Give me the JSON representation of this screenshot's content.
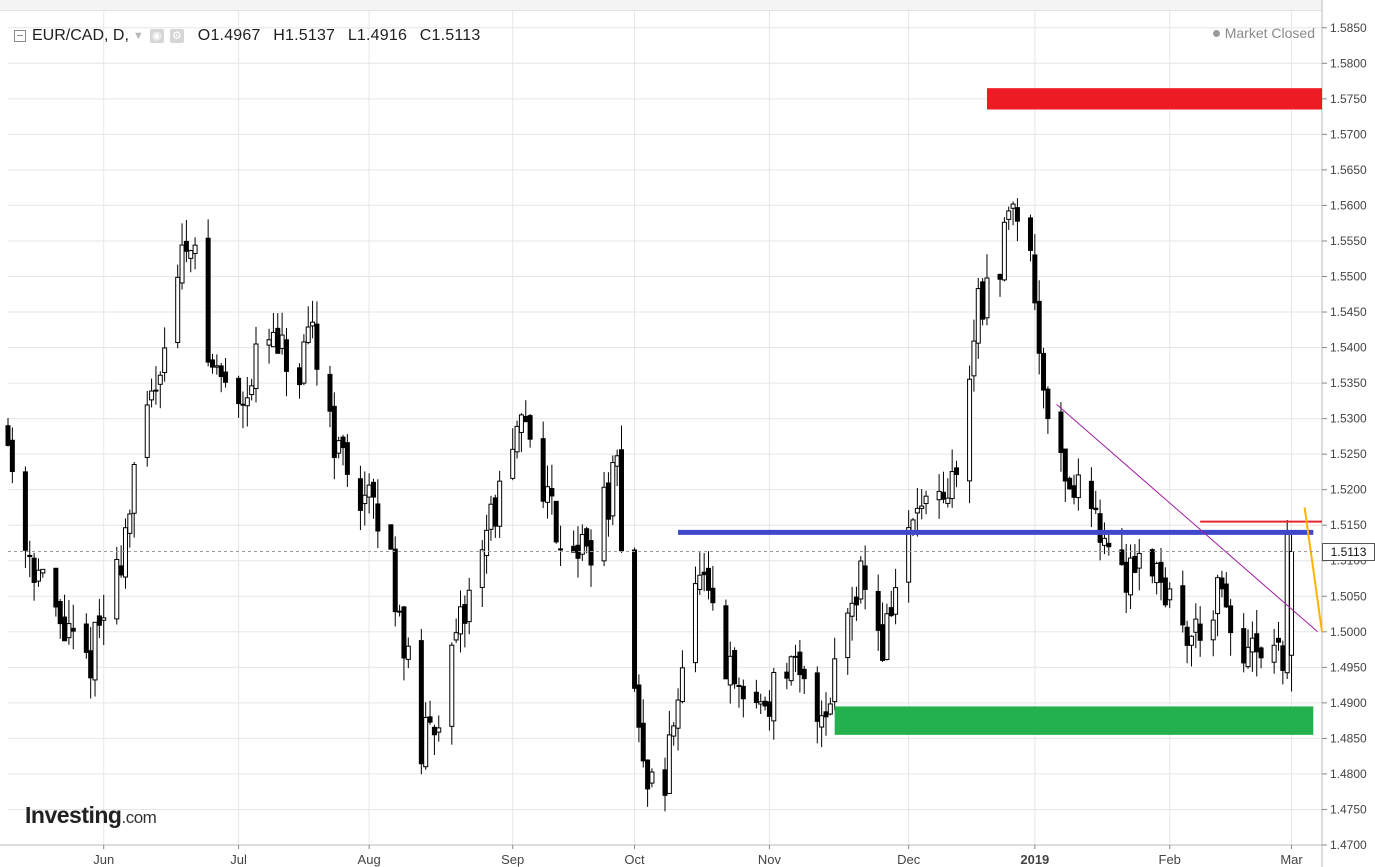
{
  "header": {
    "symbol": "EUR/CAD, D,",
    "open_key": "O",
    "open": "1.4967",
    "high_key": "H",
    "high": "1.5137",
    "low_key": "L",
    "low": "1.4916",
    "close_key": "C",
    "close": "1.5113",
    "status": "Market Closed"
  },
  "logo": {
    "main": "Investing",
    "suffix": ".com"
  },
  "last_price": "1.5113",
  "colors": {
    "background": "#ffffff",
    "grid": "#e6e6e6",
    "candle": "#000000",
    "resistance_zone": "#ed1c24",
    "support_zone": "#22b14c",
    "support_line": "#3f48cc",
    "trend_line": "#a020a0",
    "short_line": "#e8262d",
    "projection_arrow": "#ffb300"
  },
  "chart_data": {
    "type": "candlestick",
    "instrument": "EUR/CAD",
    "timeframe": "D",
    "x_range": [
      "2018-05-10",
      "2019-03-08"
    ],
    "ylim": [
      1.47,
      1.5875
    ],
    "y_ticks": [
      1.47,
      1.475,
      1.48,
      1.485,
      1.49,
      1.495,
      1.5,
      1.505,
      1.51,
      1.515,
      1.52,
      1.525,
      1.53,
      1.535,
      1.54,
      1.545,
      1.55,
      1.555,
      1.56,
      1.565,
      1.57,
      1.575,
      1.58,
      1.585
    ],
    "y_tick_labels": [
      "1.4700",
      "1.4750",
      "1.4800",
      "1.4850",
      "1.4900",
      "1.4950",
      "1.5000",
      "1.5050",
      "1.5100",
      "1.5150",
      "1.5200",
      "1.5250",
      "1.5300",
      "1.5350",
      "1.5400",
      "1.5450",
      "1.5500",
      "1.5550",
      "1.5600",
      "1.5650",
      "1.5700",
      "1.5750",
      "1.5800",
      "1.5850"
    ],
    "x_ticks": [
      {
        "label": "Jun",
        "date": "2018-06-01"
      },
      {
        "label": "Jul",
        "date": "2018-07-02"
      },
      {
        "label": "Aug",
        "date": "2018-08-01"
      },
      {
        "label": "Sep",
        "date": "2018-09-03"
      },
      {
        "label": "Oct",
        "date": "2018-10-01"
      },
      {
        "label": "Nov",
        "date": "2018-11-01"
      },
      {
        "label": "Dec",
        "date": "2018-12-03"
      },
      {
        "label": "2019",
        "date": "2019-01-01",
        "bold": true
      },
      {
        "label": "Feb",
        "date": "2019-02-01"
      },
      {
        "label": "Mar",
        "date": "2019-03-01"
      }
    ],
    "price_path": [
      [
        "2018-05-10",
        1.53
      ],
      [
        "2018-05-15",
        1.513
      ],
      [
        "2018-05-22",
        1.502
      ],
      [
        "2018-05-29",
        1.495
      ],
      [
        "2018-06-05",
        1.508
      ],
      [
        "2018-06-12",
        1.53
      ],
      [
        "2018-06-19",
        1.55
      ],
      [
        "2018-06-22",
        1.557
      ],
      [
        "2018-06-26",
        1.538
      ],
      [
        "2018-07-03",
        1.533
      ],
      [
        "2018-07-10",
        1.541
      ],
      [
        "2018-07-17",
        1.535
      ],
      [
        "2018-07-20",
        1.542
      ],
      [
        "2018-07-26",
        1.525
      ],
      [
        "2018-08-01",
        1.519
      ],
      [
        "2018-08-06",
        1.513
      ],
      [
        "2018-08-09",
        1.503
      ],
      [
        "2018-08-14",
        1.483
      ],
      [
        "2018-08-21",
        1.495
      ],
      [
        "2018-08-28",
        1.513
      ],
      [
        "2018-09-03",
        1.522
      ],
      [
        "2018-09-07",
        1.53
      ],
      [
        "2018-09-14",
        1.515
      ],
      [
        "2018-09-21",
        1.511
      ],
      [
        "2018-09-28",
        1.522
      ],
      [
        "2018-10-01",
        1.499
      ],
      [
        "2018-10-04",
        1.48
      ],
      [
        "2018-10-09",
        1.478
      ],
      [
        "2018-10-12",
        1.493
      ],
      [
        "2018-10-17",
        1.508
      ],
      [
        "2018-10-22",
        1.496
      ],
      [
        "2018-10-26",
        1.491
      ],
      [
        "2018-11-01",
        1.49
      ],
      [
        "2018-11-06",
        1.495
      ],
      [
        "2018-11-12",
        1.49
      ],
      [
        "2018-11-15",
        1.489
      ],
      [
        "2018-11-19",
        1.502
      ],
      [
        "2018-11-23",
        1.509
      ],
      [
        "2018-11-28",
        1.498
      ],
      [
        "2018-12-03",
        1.512
      ],
      [
        "2018-12-07",
        1.518
      ],
      [
        "2018-12-12",
        1.516
      ],
      [
        "2018-12-17",
        1.528
      ],
      [
        "2018-12-20",
        1.548
      ],
      [
        "2018-12-24",
        1.545
      ],
      [
        "2018-12-27",
        1.561
      ],
      [
        "2018-12-31",
        1.56
      ],
      [
        "2019-01-03",
        1.54
      ],
      [
        "2019-01-07",
        1.525
      ],
      [
        "2019-01-11",
        1.52
      ],
      [
        "2019-01-16",
        1.518
      ],
      [
        "2019-01-21",
        1.506
      ],
      [
        "2019-01-25",
        1.511
      ],
      [
        "2019-01-30",
        1.51
      ],
      [
        "2019-02-04",
        1.5
      ],
      [
        "2019-02-08",
        1.5
      ],
      [
        "2019-02-13",
        1.505
      ],
      [
        "2019-02-18",
        1.497
      ],
      [
        "2019-02-22",
        1.496
      ],
      [
        "2019-02-26",
        1.495
      ],
      [
        "2019-02-28",
        1.497
      ],
      [
        "2019-03-01",
        1.5113
      ]
    ],
    "annotations": {
      "resistance_zone": {
        "from": "2018-12-21",
        "to": "2019-03-08",
        "y0": 1.5735,
        "y1": 1.5765
      },
      "support_zone": {
        "from": "2018-11-16",
        "to": "2019-03-06",
        "y0": 1.4855,
        "y1": 1.4895
      },
      "support_line": {
        "from": "2018-10-11",
        "to": "2019-03-06",
        "y": 1.514
      },
      "trend_line": {
        "from": [
          "2019-01-06",
          1.532
        ],
        "to": [
          "2019-03-07",
          1.5
        ]
      },
      "short_line": {
        "from": [
          "2019-02-08",
          1.5155
        ],
        "to": [
          "2019-03-08",
          1.5155
        ]
      },
      "projection_arrow": {
        "from": [
          "2019-03-04",
          1.5175
        ],
        "to": [
          "2019-03-08",
          1.5
        ]
      }
    }
  }
}
